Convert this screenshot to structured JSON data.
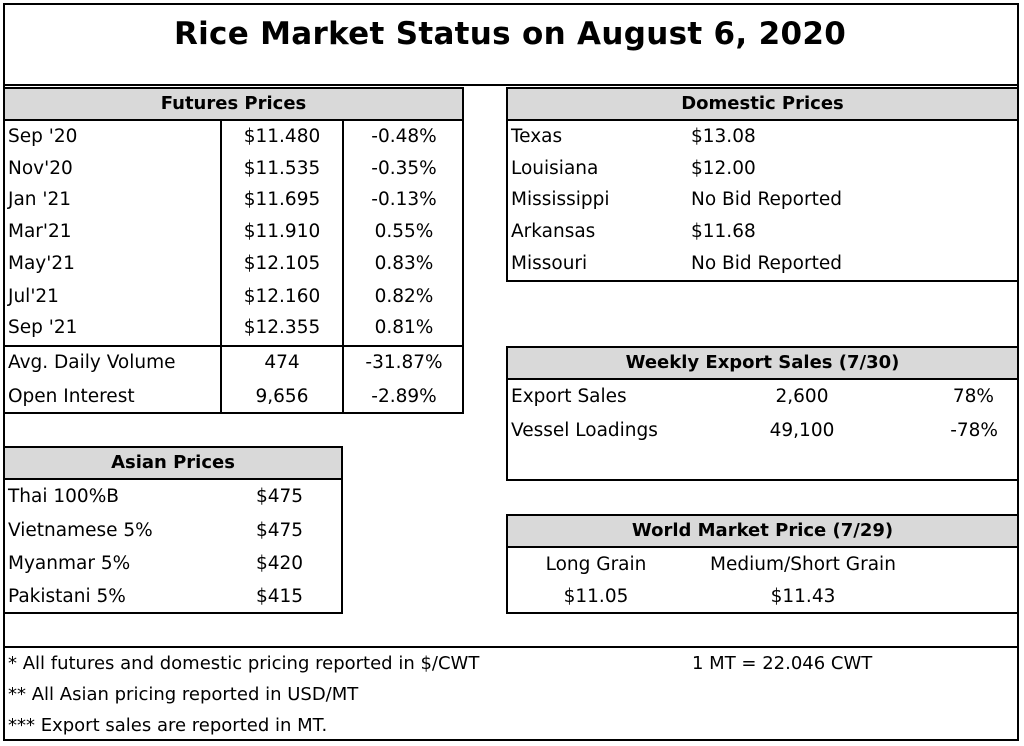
{
  "title": "Rice Market Status on August 6, 2020",
  "futures": {
    "header": "Futures Prices",
    "rows": [
      {
        "contract": "Sep '20",
        "price": "$11.480",
        "change": "-0.48%"
      },
      {
        "contract": "Nov'20",
        "price": "$11.535",
        "change": "-0.35%"
      },
      {
        "contract": "Jan '21",
        "price": "$11.695",
        "change": "-0.13%"
      },
      {
        "contract": "Mar'21",
        "price": "$11.910",
        "change": "0.55%"
      },
      {
        "contract": "May'21",
        "price": "$12.105",
        "change": "0.83%"
      },
      {
        "contract": "Jul'21",
        "price": "$12.160",
        "change": "0.82%"
      },
      {
        "contract": "Sep '21",
        "price": "$12.355",
        "change": "0.81%"
      }
    ],
    "volume": {
      "label": "Avg. Daily Volume",
      "value": "474",
      "change": "-31.87%"
    },
    "open_interest": {
      "label": "Open Interest",
      "value": "9,656",
      "change": "-2.89%"
    }
  },
  "domestic": {
    "header": "Domestic Prices",
    "rows": [
      {
        "state": "Texas",
        "price": "$13.08"
      },
      {
        "state": "Louisiana",
        "price": "$12.00"
      },
      {
        "state": "Mississippi",
        "price": "No Bid Reported"
      },
      {
        "state": "Arkansas",
        "price": "$11.68"
      },
      {
        "state": "Missouri",
        "price": "No Bid Reported"
      }
    ]
  },
  "export": {
    "header": "Weekly Export Sales (7/30)",
    "rows": [
      {
        "label": "Export Sales",
        "value": "2,600",
        "change": "78%"
      },
      {
        "label": "Vessel Loadings",
        "value": "49,100",
        "change": "-78%"
      }
    ]
  },
  "asian": {
    "header": "Asian Prices",
    "rows": [
      {
        "label": "Thai 100%B",
        "price": "$475"
      },
      {
        "label": "Vietnamese 5%",
        "price": "$475"
      },
      {
        "label": "Myanmar 5%",
        "price": "$420"
      },
      {
        "label": "Pakistani 5%",
        "price": "$415"
      }
    ]
  },
  "world": {
    "header": "World Market Price (7/29)",
    "long_label": "Long Grain",
    "medium_label": "Medium/Short Grain",
    "long_price": "$11.05",
    "medium_price": "$11.43"
  },
  "notes": {
    "note1": "* All futures and domestic pricing reported in $/CWT",
    "conversion": "1 MT = 22.046 CWT",
    "note2": "** All Asian pricing reported in USD/MT",
    "note3": "*** Export sales are reported in MT."
  }
}
